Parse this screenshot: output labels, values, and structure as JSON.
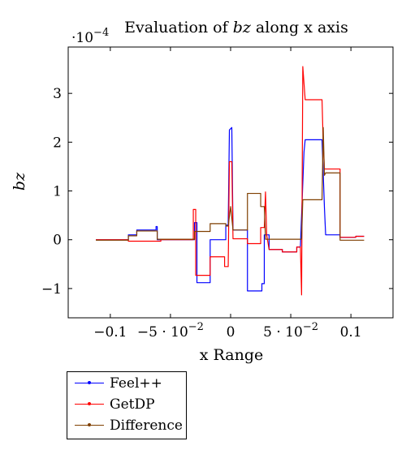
{
  "chart_data": {
    "type": "line",
    "title_prefix": "Evaluation of ",
    "title_var": "bz",
    "title_suffix": " along x axis",
    "xlabel": "x Range",
    "ylabel": "bz",
    "y_scale_label": "·10",
    "y_scale_exp": "−4",
    "xlim": [
      -0.135,
      0.135
    ],
    "ylim": [
      -1.6,
      3.95
    ],
    "x_ticks": [
      {
        "value": -0.1,
        "label": "−0.1"
      },
      {
        "value": -0.05,
        "label": "−5 · 10",
        "exp": "−2"
      },
      {
        "value": 0,
        "label": "0"
      },
      {
        "value": 0.05,
        "label": "5 · 10",
        "exp": "−2"
      },
      {
        "value": 0.1,
        "label": "0.1"
      }
    ],
    "y_ticks": [
      {
        "value": -1,
        "label": "−1"
      },
      {
        "value": 0,
        "label": "0"
      },
      {
        "value": 1,
        "label": "1"
      },
      {
        "value": 2,
        "label": "2"
      },
      {
        "value": 3,
        "label": "3"
      }
    ],
    "grid": false,
    "legend_position": "below-left",
    "series": [
      {
        "name": "Feel++",
        "color": "#0000ff",
        "points": [
          [
            -0.112,
            0
          ],
          [
            -0.085,
            0
          ],
          [
            -0.085,
            0.1
          ],
          [
            -0.078,
            0.1
          ],
          [
            -0.078,
            0.2
          ],
          [
            -0.062,
            0.2
          ],
          [
            -0.062,
            0.27
          ],
          [
            -0.061,
            0.27
          ],
          [
            -0.061,
            0
          ],
          [
            -0.03,
            0
          ],
          [
            -0.03,
            0.35
          ],
          [
            -0.028,
            0.35
          ],
          [
            -0.028,
            -0.88
          ],
          [
            -0.017,
            -0.88
          ],
          [
            -0.017,
            0
          ],
          [
            -0.004,
            0
          ],
          [
            -0.004,
            0.3
          ],
          [
            -0.002,
            0.3
          ],
          [
            -0.001,
            2.25
          ],
          [
            0.001,
            2.3
          ],
          [
            0.002,
            0.2
          ],
          [
            0.014,
            0.2
          ],
          [
            0.014,
            -1.05
          ],
          [
            0.026,
            -1.05
          ],
          [
            0.026,
            -0.9
          ],
          [
            0.028,
            -0.9
          ],
          [
            0.028,
            0.1
          ],
          [
            0.032,
            0.1
          ],
          [
            0.032,
            -0.2
          ],
          [
            0.043,
            -0.2
          ],
          [
            0.043,
            -0.25
          ],
          [
            0.055,
            -0.25
          ],
          [
            0.055,
            -0.15
          ],
          [
            0.058,
            -0.15
          ],
          [
            0.061,
            1.8
          ],
          [
            0.062,
            2.05
          ],
          [
            0.076,
            2.05
          ],
          [
            0.078,
            0.65
          ],
          [
            0.079,
            0.1
          ],
          [
            0.091,
            0.1
          ],
          [
            0.091,
            0.05
          ],
          [
            0.104,
            0.05
          ],
          [
            0.104,
            0.07
          ],
          [
            0.111,
            0.07
          ]
        ]
      },
      {
        "name": "GetDP",
        "color": "#ff0000",
        "points": [
          [
            -0.112,
            0
          ],
          [
            -0.085,
            0
          ],
          [
            -0.085,
            -0.03
          ],
          [
            -0.058,
            -0.03
          ],
          [
            -0.058,
            0
          ],
          [
            -0.031,
            0
          ],
          [
            -0.031,
            0.62
          ],
          [
            -0.029,
            0.62
          ],
          [
            -0.029,
            -0.73
          ],
          [
            -0.017,
            -0.73
          ],
          [
            -0.017,
            -0.35
          ],
          [
            -0.005,
            -0.35
          ],
          [
            -0.005,
            -0.55
          ],
          [
            -0.002,
            -0.55
          ],
          [
            -0.001,
            1.6
          ],
          [
            0.001,
            1.6
          ],
          [
            0.002,
            0.02
          ],
          [
            0.014,
            0.02
          ],
          [
            0.014,
            -0.08
          ],
          [
            0.025,
            -0.08
          ],
          [
            0.025,
            0.25
          ],
          [
            0.028,
            0.25
          ],
          [
            0.029,
            0.98
          ],
          [
            0.03,
            0.1
          ],
          [
            0.032,
            -0.2
          ],
          [
            0.043,
            -0.2
          ],
          [
            0.043,
            -0.25
          ],
          [
            0.055,
            -0.25
          ],
          [
            0.055,
            -0.15
          ],
          [
            0.058,
            -0.15
          ],
          [
            0.059,
            -1.13
          ],
          [
            0.06,
            3.55
          ],
          [
            0.062,
            2.87
          ],
          [
            0.076,
            2.87
          ],
          [
            0.077,
            1.95
          ],
          [
            0.078,
            1.45
          ],
          [
            0.091,
            1.45
          ],
          [
            0.091,
            0.05
          ],
          [
            0.104,
            0.05
          ],
          [
            0.104,
            0.07
          ],
          [
            0.111,
            0.07
          ]
        ]
      },
      {
        "name": "Difference",
        "color": "#7f3f00",
        "points": [
          [
            -0.112,
            -0.01
          ],
          [
            -0.085,
            -0.01
          ],
          [
            -0.085,
            0.08
          ],
          [
            -0.078,
            0.08
          ],
          [
            -0.078,
            0.18
          ],
          [
            -0.061,
            0.18
          ],
          [
            -0.061,
            0.01
          ],
          [
            -0.03,
            0.01
          ],
          [
            -0.03,
            0.17
          ],
          [
            -0.017,
            0.17
          ],
          [
            -0.017,
            0.33
          ],
          [
            -0.004,
            0.33
          ],
          [
            -0.004,
            0.28
          ],
          [
            -0.002,
            0.28
          ],
          [
            0,
            0.68
          ],
          [
            0.002,
            0.2
          ],
          [
            0.014,
            0.2
          ],
          [
            0.014,
            0.95
          ],
          [
            0.025,
            0.95
          ],
          [
            0.025,
            0.68
          ],
          [
            0.028,
            0.68
          ],
          [
            0.029,
            0.01
          ],
          [
            0.059,
            0.01
          ],
          [
            0.06,
            0.82
          ],
          [
            0.076,
            0.82
          ],
          [
            0.077,
            2.3
          ],
          [
            0.078,
            1.32
          ],
          [
            0.079,
            1.37
          ],
          [
            0.091,
            1.37
          ],
          [
            0.091,
            -0.01
          ],
          [
            0.111,
            -0.01
          ]
        ]
      }
    ]
  }
}
